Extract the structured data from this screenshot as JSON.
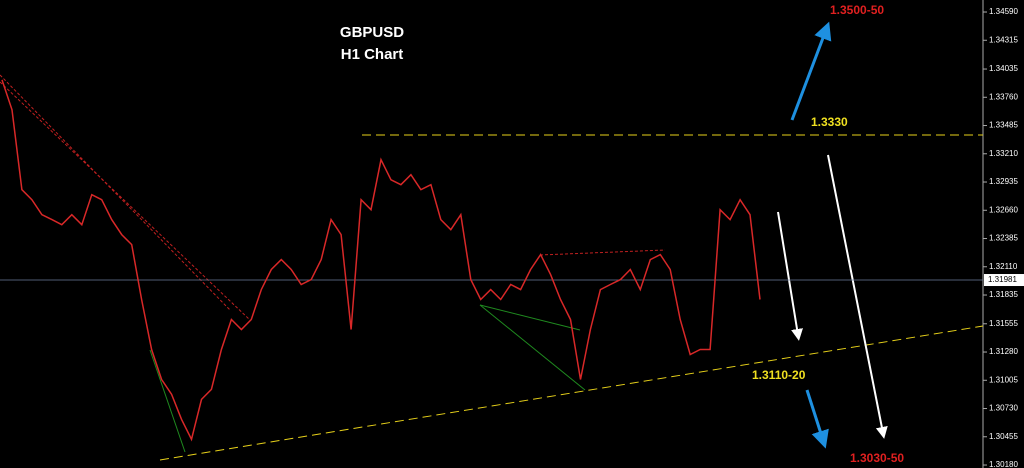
{
  "chart_data": {
    "type": "line",
    "title": "GBPUSD",
    "subtitle": "H1 Chart",
    "series": [
      {
        "name": "GBPUSD",
        "color": "#d82828",
        "values": [
          1.33929,
          1.33638,
          1.3286,
          1.32763,
          1.32617,
          1.32569,
          1.3252,
          1.32617,
          1.3252,
          1.32812,
          1.32763,
          1.32569,
          1.32423,
          1.32326,
          1.31791,
          1.31305,
          1.31013,
          1.30868,
          1.30625,
          1.3043,
          1.30819,
          1.30916,
          1.31305,
          1.31597,
          1.31499,
          1.31597,
          1.31888,
          1.32083,
          1.3218,
          1.32083,
          1.31937,
          1.31985,
          1.3218,
          1.32569,
          1.32423,
          1.31499,
          1.32763,
          1.32666,
          1.33152,
          1.32957,
          1.32909,
          1.33006,
          1.3286,
          1.32909,
          1.32569,
          1.32471,
          1.32617,
          1.31985,
          1.31791,
          1.31888,
          1.31791,
          1.31937,
          1.31888,
          1.32083,
          1.32228,
          1.32034,
          1.31791,
          1.31597,
          1.31013,
          1.31499,
          1.31888,
          1.31937,
          1.31985,
          1.32083,
          1.31888,
          1.3218,
          1.32228,
          1.32083,
          1.31597,
          1.31256,
          1.31305,
          1.31305,
          1.32666,
          1.32569,
          1.32763,
          1.32617,
          1.31791
        ]
      }
    ],
    "ylim": [
      1.30151,
      1.34707
    ],
    "yticks": [
      {
        "value": 1.3459,
        "label": "1.34590"
      },
      1.34315,
      1.34035,
      {
        "value": 1.3376,
        "label": "1.33760"
      },
      1.33485,
      {
        "value": 1.3321,
        "label": "1.33210"
      },
      1.32935,
      {
        "value": 1.3266,
        "label": "1.32660"
      },
      1.32385,
      {
        "value": 1.3211,
        "label": "1.32110"
      },
      1.31835,
      1.31555,
      {
        "value": 1.3128,
        "label": "1.31280"
      },
      1.31005,
      {
        "value": 1.3073,
        "label": "1.30730"
      },
      1.30455,
      {
        "value": 1.3018,
        "label": "1.30180"
      }
    ],
    "current_price": 1.31981,
    "annotations": [
      "1.3500-50",
      "1.3330",
      "1.3110-20",
      "1.3030-50"
    ]
  }
}
